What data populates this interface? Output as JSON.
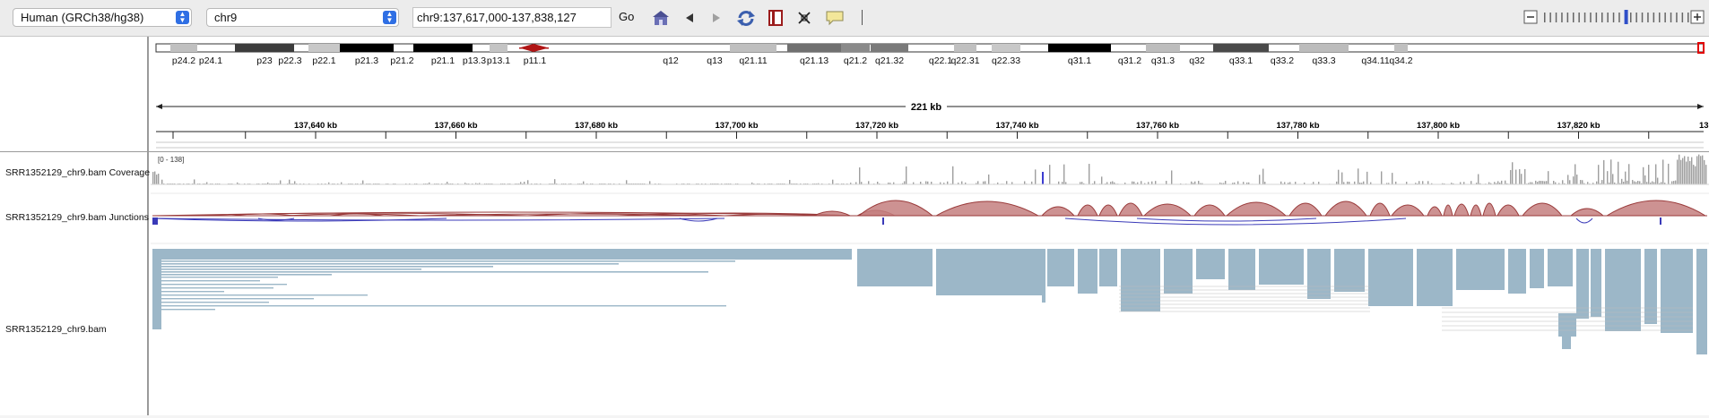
{
  "toolbar": {
    "genome": "Human (GRCh38/hg38)",
    "chromosome": "chr9",
    "locus": "chr9:137,617,000-137,838,127",
    "go_label": "Go",
    "icons": [
      "home-icon",
      "back-icon",
      "forward-icon",
      "refresh-icon",
      "region-icon",
      "resize-icon",
      "popup-text-icon"
    ],
    "zoom_icons": [
      "zoom-out-icon",
      "zoom-in-icon"
    ]
  },
  "ideogram": {
    "bands": [
      "p24.2",
      "p24.1",
      "p23",
      "p22.3",
      "p22.1",
      "p21.3",
      "p21.2",
      "p21.1",
      "p13.3",
      "p13.1",
      "p11.1",
      "q12",
      "q13",
      "q21.11",
      "q21.13",
      "q21.2",
      "q21.32",
      "q22.1",
      "q22.31",
      "q22.33",
      "q31.1",
      "q31.2",
      "q31.3",
      "q32",
      "q33.1",
      "q33.2",
      "q33.3",
      "q34.11",
      "q34.2"
    ]
  },
  "ruler": {
    "span_label": "221 kb",
    "tick_labels": [
      "137,640 kb",
      "137,660 kb",
      "137,680 kb",
      "137,700 kb",
      "137,720 kb",
      "137,740 kb",
      "137,760 kb",
      "137,780 kb",
      "137,800 kb",
      "137,820 kb"
    ],
    "edge_label": "13"
  },
  "tracks": {
    "coverage_name": "SRR1352129_chr9.bam Coverage",
    "coverage_range": "[0 - 138]",
    "junction_name": "SRR1352129_chr9.bam Junctions",
    "alignment_name": "SRR1352129_chr9.bam"
  },
  "colors": {
    "junction_fill": "#c47f7f",
    "junction_stroke": "#9a3b3b",
    "junction_minus": "#3a3ab8",
    "read": "#9cb7c8",
    "coverage": "#9e9e9e"
  }
}
